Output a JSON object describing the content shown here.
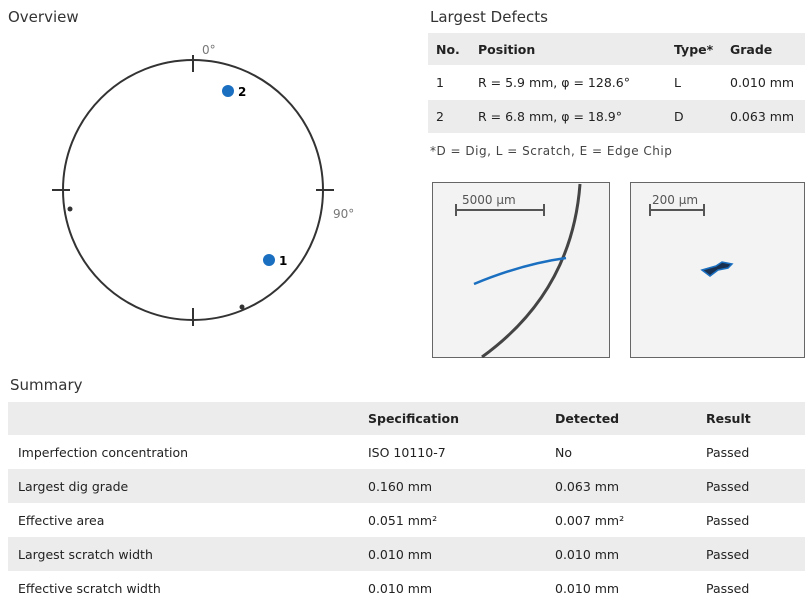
{
  "overview": {
    "title": "Overview",
    "angle_top": "0°",
    "angle_right": "90°",
    "markers": [
      {
        "label": "1"
      },
      {
        "label": "2"
      }
    ]
  },
  "defects": {
    "title": "Largest Defects",
    "headers": [
      "No.",
      "Position",
      "Type*",
      "Grade"
    ],
    "rows": [
      [
        "1",
        "R = 5.9 mm, φ = 128.6°",
        "L",
        "0.010 mm"
      ],
      [
        "2",
        "R = 6.8 mm, φ = 18.9°",
        "D",
        "0.063 mm"
      ]
    ],
    "note": "*D = Dig, L = Scratch, E = Edge Chip"
  },
  "images": [
    {
      "scale": "5000 µm"
    },
    {
      "scale": "200 µm"
    }
  ],
  "summary": {
    "title": "Summary",
    "headers": [
      "Specification",
      "Detected",
      "Result"
    ],
    "rows": [
      [
        "Imperfection concentration",
        "ISO 10110-7",
        "No",
        "Passed"
      ],
      [
        "Largest dig grade",
        "0.160 mm",
        "0.063 mm",
        "Passed"
      ],
      [
        "Effective area",
        "0.051 mm²",
        "0.007 mm²",
        "Passed"
      ],
      [
        "Largest scratch width",
        "0.010 mm",
        "0.010 mm",
        "Passed"
      ],
      [
        "Effective scratch width",
        "0.010 mm",
        "0.010 mm",
        "Passed"
      ]
    ]
  }
}
